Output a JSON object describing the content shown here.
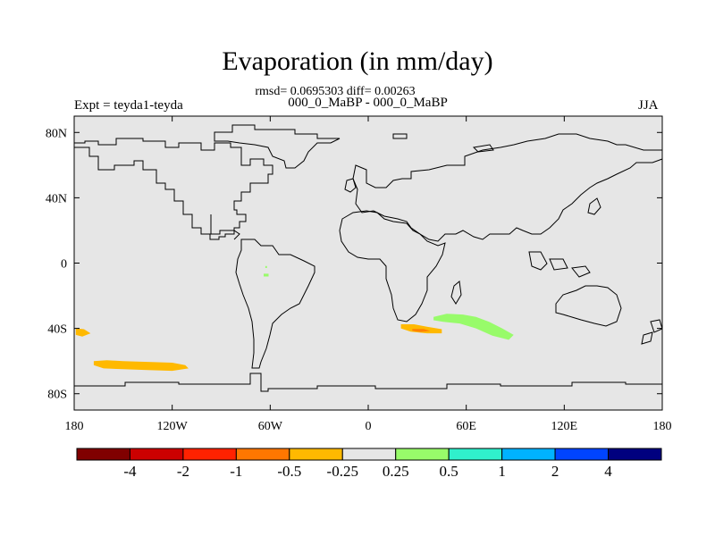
{
  "title": "Evaporation (in mm/day)",
  "stats_text": "rmsd= 0.0695303 diff= 0.00263",
  "subtitle": "000_0_MaBP - 000_0_MaBP",
  "left_label": "Expt = teyda1-teyda",
  "season_label": "JJA",
  "map": {
    "background_color": "#e6e6e6",
    "coastline_color": "#000000",
    "lon_range": [
      -180,
      180
    ],
    "lat_range": [
      -90,
      90
    ],
    "x_ticks": [
      {
        "lon": -180,
        "label": "180"
      },
      {
        "lon": -120,
        "label": "120W"
      },
      {
        "lon": -60,
        "label": "60W"
      },
      {
        "lon": 0,
        "label": "0"
      },
      {
        "lon": 60,
        "label": "60E"
      },
      {
        "lon": 120,
        "label": "120E"
      },
      {
        "lon": 180,
        "label": "180"
      }
    ],
    "y_ticks": [
      {
        "lat": 80,
        "label": "80N"
      },
      {
        "lat": 40,
        "label": "40N"
      },
      {
        "lat": 0,
        "label": "0"
      },
      {
        "lat": -40,
        "label": "40S"
      },
      {
        "lat": -80,
        "label": "80S"
      }
    ],
    "anomaly_regions": [
      {
        "name": "south-pacific-band",
        "color": "#ffb900",
        "points": [
          [
            -168,
            -60
          ],
          [
            -160,
            -59.5
          ],
          [
            -150,
            -60
          ],
          [
            -135,
            -60.5
          ],
          [
            -120,
            -61
          ],
          [
            -112,
            -62.5
          ],
          [
            -110,
            -64.5
          ],
          [
            -120,
            -66
          ],
          [
            -135,
            -65.5
          ],
          [
            -150,
            -65
          ],
          [
            -162,
            -64.5
          ],
          [
            -168,
            -62.5
          ]
        ]
      },
      {
        "name": "pacific-east-small",
        "color": "#ffb900",
        "points": [
          [
            -179,
            -40
          ],
          [
            -174,
            -40.5
          ],
          [
            -170,
            -43
          ],
          [
            -175,
            -45
          ],
          [
            -179,
            -44
          ]
        ]
      },
      {
        "name": "south-africa-patch",
        "color": "#ffb900",
        "points": [
          [
            20,
            -37.5
          ],
          [
            28,
            -37.5
          ],
          [
            36,
            -39
          ],
          [
            45,
            -40.5
          ],
          [
            45,
            -43
          ],
          [
            36,
            -43
          ],
          [
            26,
            -42
          ],
          [
            20,
            -40
          ]
        ]
      },
      {
        "name": "south-africa-core",
        "color": "#ff8000",
        "points": [
          [
            27,
            -40.3
          ],
          [
            34,
            -40.3
          ],
          [
            38,
            -41.6
          ],
          [
            32,
            -42.2
          ],
          [
            27,
            -41.5
          ]
        ]
      },
      {
        "name": "indian-ocean-band",
        "color": "#98fb6a",
        "points": [
          [
            40,
            -33
          ],
          [
            48,
            -31
          ],
          [
            58,
            -31.5
          ],
          [
            66,
            -33
          ],
          [
            74,
            -36
          ],
          [
            82,
            -40
          ],
          [
            89,
            -44
          ],
          [
            86,
            -47
          ],
          [
            76,
            -44.5
          ],
          [
            66,
            -40
          ],
          [
            56,
            -37
          ],
          [
            46,
            -36
          ],
          [
            40,
            -35
          ]
        ]
      },
      {
        "name": "south-america-dot-1",
        "color": "#98fb6a",
        "points": [
          [
            -64,
            -6.5
          ],
          [
            -61,
            -6.5
          ],
          [
            -61,
            -8.2
          ],
          [
            -64,
            -8.2
          ]
        ]
      },
      {
        "name": "south-america-dot-2",
        "color": "#98fb6a",
        "points": [
          [
            -63,
            -1.8
          ],
          [
            -62,
            -1.8
          ],
          [
            -62,
            -3
          ],
          [
            -63,
            -3
          ]
        ]
      }
    ]
  },
  "colorbar": {
    "colors": [
      "#800000",
      "#cc0000",
      "#ff2200",
      "#ff7700",
      "#ffb900",
      "#e6e6e6",
      "#98fb6a",
      "#30f0cc",
      "#00b2ff",
      "#0044ff",
      "#00007f"
    ],
    "labels": [
      "-4",
      "-2",
      "-1",
      "-0.5",
      "-0.25",
      "0.25",
      "0.5",
      "1",
      "2",
      "4"
    ]
  }
}
